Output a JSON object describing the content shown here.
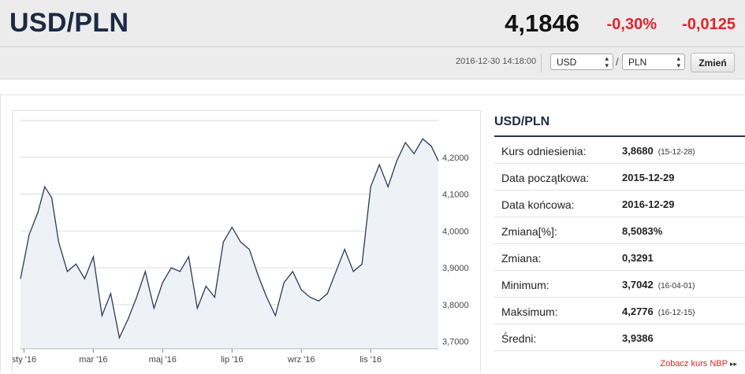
{
  "header": {
    "pair": "USD/PLN",
    "rate": "4,1846",
    "change_pct": "-0,30%",
    "change_abs": "-0,0125",
    "timestamp": "2016-12-30 14:18:00",
    "from_currency": "USD",
    "separator": "/",
    "to_currency": "PLN",
    "change_button": "Zmień"
  },
  "stats": {
    "title": "USD/PLN",
    "rows": [
      {
        "label": "Kurs odniesienia:",
        "value": "3,8680",
        "date": "(15-12-28)"
      },
      {
        "label": "Data początkowa:",
        "value": "2015-12-29",
        "date": ""
      },
      {
        "label": "Data końcowa:",
        "value": "2016-12-29",
        "date": ""
      },
      {
        "label": "Zmiana[%]:",
        "value": "8,5083%",
        "date": ""
      },
      {
        "label": "Zmiana:",
        "value": "0,3291",
        "date": ""
      },
      {
        "label": "Minimum:",
        "value": "3,7042",
        "date": "(16-04-01)"
      },
      {
        "label": "Maksimum:",
        "value": "4,2776",
        "date": "(16-12-15)"
      },
      {
        "label": "Średni:",
        "value": "3,9386",
        "date": ""
      }
    ],
    "nbp_link": "Zobacz kurs NBP",
    "nbp_arrow": "▸▸"
  },
  "chart_data": {
    "type": "area",
    "x_tick_labels": [
      "sty '16",
      "mar '16",
      "maj '16",
      "lip '16",
      "wrz '16",
      "lis '16"
    ],
    "y_tick_labels": [
      "3,7000",
      "3,8000",
      "3,9000",
      "4,0000",
      "4,1000",
      "4,2000"
    ],
    "y_ticks": [
      3.7,
      3.8,
      3.9,
      4.0,
      4.1,
      4.2
    ],
    "ylim": [
      3.68,
      4.3
    ],
    "x_range": [
      "2015-12-29",
      "2016-12-29"
    ],
    "x_months": [
      -0.1,
      0.15,
      0.4,
      0.6,
      0.8,
      1.0,
      1.25,
      1.5,
      1.75,
      2.0,
      2.25,
      2.5,
      2.75,
      3.0,
      3.25,
      3.5,
      3.75,
      4.0,
      4.25,
      4.5,
      4.75,
      5.0,
      5.25,
      5.5,
      5.75,
      6.0,
      6.25,
      6.5,
      6.75,
      7.0,
      7.25,
      7.5,
      7.75,
      8.0,
      8.25,
      8.5,
      8.75,
      9.0,
      9.25,
      9.5,
      9.75,
      10.0,
      10.25,
      10.5,
      10.75,
      11.0,
      11.25,
      11.5,
      11.75,
      11.95
    ],
    "values": [
      3.87,
      3.99,
      4.05,
      4.12,
      4.09,
      3.97,
      3.89,
      3.91,
      3.87,
      3.93,
      3.77,
      3.83,
      3.71,
      3.76,
      3.82,
      3.89,
      3.79,
      3.86,
      3.9,
      3.89,
      3.93,
      3.79,
      3.85,
      3.82,
      3.97,
      4.01,
      3.97,
      3.95,
      3.88,
      3.82,
      3.77,
      3.86,
      3.89,
      3.84,
      3.82,
      3.81,
      3.83,
      3.89,
      3.95,
      3.89,
      3.91,
      4.12,
      4.18,
      4.12,
      4.19,
      4.24,
      4.21,
      4.25,
      4.23,
      4.19
    ],
    "line_color": "#2b3a55",
    "fill_color": "#eef1f6",
    "grid": true
  }
}
